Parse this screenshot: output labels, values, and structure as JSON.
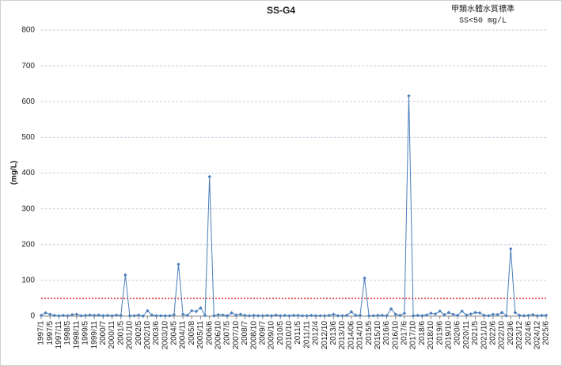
{
  "chart_data": {
    "type": "line",
    "title": "SS-G4",
    "annotations": [
      "甲類水體水質標準",
      "SS<50 mg/L"
    ],
    "y_label": "(mg/L)",
    "categories": [
      "1997/1",
      null,
      "1997/5",
      null,
      "1997/11",
      null,
      "1998/5",
      null,
      "1998/11",
      null,
      "1999/5",
      null,
      "1999/11",
      null,
      "2000/7",
      null,
      "2000/11",
      null,
      "2001/5",
      null,
      "2001/10",
      null,
      "2002/5",
      null,
      "2002/10",
      null,
      "2003/6",
      null,
      "2003/10",
      null,
      "2004/5",
      null,
      "2004/11",
      null,
      "2005/8",
      null,
      "2005/11",
      null,
      "2006/6",
      null,
      "2006/10",
      null,
      "2007/5",
      null,
      "2007/10",
      null,
      "2008/7",
      null,
      "2008/10",
      null,
      "2009/7",
      null,
      "2009/10",
      null,
      "2010/5",
      null,
      "2010/10",
      null,
      "2011/5",
      null,
      "2011/11",
      null,
      "2012/4",
      null,
      "2012/10",
      null,
      "2013/6",
      null,
      "2013/10",
      null,
      "2014/06",
      null,
      "2014/10",
      null,
      "2015/5",
      null,
      "2015/10",
      null,
      "2016/6",
      null,
      "2016/10",
      null,
      "2017/6",
      null,
      "2017/10",
      null,
      "2018/6",
      null,
      "2018/10",
      null,
      "2019/6",
      null,
      "2019/10",
      null,
      "2020/6",
      null,
      "2020/11",
      null,
      "2021/5",
      null,
      "2021/10",
      null,
      "2022/6",
      null,
      "2022/10",
      null,
      "2023/6",
      null,
      "2023/12",
      null,
      "2024/6",
      null,
      "2024/12",
      null,
      "2025/6"
    ],
    "series": [
      {
        "name": "SS",
        "color": "#4a7ebb",
        "values": [
          2,
          9,
          5,
          2,
          1,
          2,
          1,
          4,
          5,
          1,
          2,
          3,
          2,
          3,
          1,
          2,
          1,
          3,
          2,
          115,
          1,
          1,
          3,
          0,
          15,
          3,
          1,
          1,
          1,
          1,
          4,
          145,
          5,
          2,
          15,
          13,
          23,
          2,
          390,
          1,
          4,
          3,
          1,
          9,
          3,
          5,
          2,
          1,
          2,
          1,
          1,
          2,
          1,
          3,
          1,
          2,
          1,
          2,
          2,
          1,
          1,
          2,
          1,
          1,
          1,
          2,
          5,
          1,
          1,
          2,
          12,
          2,
          2,
          106,
          1,
          1,
          2,
          2,
          1,
          20,
          5,
          2,
          8,
          616,
          1,
          2,
          1,
          3,
          8,
          6,
          14,
          4,
          10,
          5,
          2,
          14,
          3,
          6,
          10,
          9,
          2,
          1,
          5,
          4,
          10,
          1,
          188,
          10,
          2,
          1,
          2,
          4,
          1,
          2,
          2
        ]
      }
    ],
    "standard": {
      "value": 50,
      "color": "#e03030"
    },
    "ylim": [
      0,
      800
    ],
    "yticks": [
      0,
      100,
      200,
      300,
      400,
      500,
      600,
      700,
      800
    ],
    "grid": true
  }
}
